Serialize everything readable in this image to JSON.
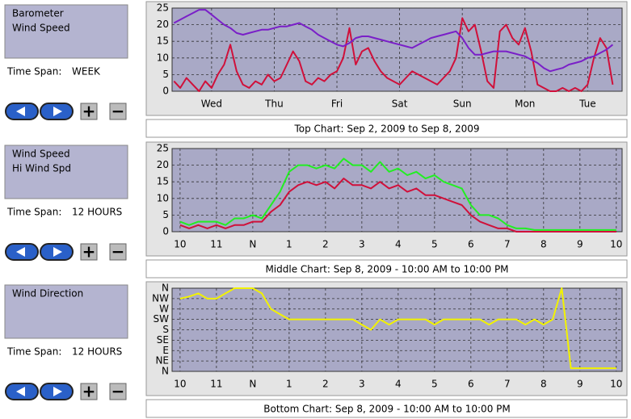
{
  "panels": [
    {
      "time_span_label": "Time Span:",
      "time_span": "WEEK",
      "buttons": [
        "+",
        "−"
      ],
      "caption": "Top Chart:  Sep 2, 2009  to  Sep 8, 2009",
      "chart_data": {
        "type": "line",
        "x": [
          -0.1,
          0,
          0.1,
          0.2,
          0.3,
          0.4,
          0.5,
          0.6,
          0.7,
          0.8,
          0.9,
          1,
          1.1,
          1.2,
          1.3,
          1.4,
          1.5,
          1.6,
          1.7,
          1.8,
          1.9,
          2,
          2.1,
          2.2,
          2.3,
          2.4,
          2.5,
          2.6,
          2.7,
          2.8,
          2.9,
          3,
          3.1,
          3.2,
          3.3,
          3.4,
          3.5,
          3.6,
          3.7,
          3.8,
          3.9,
          4,
          4.1,
          4.2,
          4.3,
          4.4,
          4.5,
          4.6,
          4.7,
          4.8,
          4.9,
          5,
          5.1,
          5.2,
          5.3,
          5.4,
          5.5,
          5.6,
          5.7,
          5.8,
          5.9,
          6,
          6.1,
          6.2,
          6.3,
          6.4,
          6.5,
          6.6,
          6.7,
          6.8,
          6.9
        ],
        "xlim": [
          -0.13,
          7.05
        ],
        "xticks": [
          {
            "value": 0.5,
            "label": "Wed"
          },
          {
            "value": 1.5,
            "label": "Thu"
          },
          {
            "value": 2.5,
            "label": "Fri"
          },
          {
            "value": 3.5,
            "label": "Sat"
          },
          {
            "value": 4.5,
            "label": "Sun"
          },
          {
            "value": 5.5,
            "label": "Mon"
          },
          {
            "value": 6.5,
            "label": "Tue"
          }
        ],
        "ylim": [
          0,
          25
        ],
        "yticks": [
          0,
          5,
          10,
          15,
          20,
          25
        ],
        "grid": true,
        "series": [
          {
            "name": "Barometer",
            "color": "#7a1fc8",
            "values": [
              20.5,
              21.5,
              22.5,
              23.5,
              24.5,
              24.5,
              23,
              21.5,
              20,
              19,
              17.5,
              17,
              17.5,
              18,
              18.5,
              18.5,
              19,
              19.5,
              19.5,
              20,
              20.5,
              19.5,
              18.5,
              17,
              16,
              15,
              14,
              13.5,
              14.5,
              16,
              16.5,
              16.5,
              16,
              15.5,
              15,
              14.5,
              14,
              13.5,
              13,
              14,
              15,
              16,
              16.5,
              17,
              17.5,
              18,
              16,
              13,
              11,
              11,
              11.5,
              12,
              12,
              12,
              11.5,
              11,
              10.5,
              9.5,
              8.5,
              7,
              6,
              6.5,
              7,
              8,
              8.5,
              9,
              10,
              10.5,
              11.5,
              12.5,
              14
            ]
          },
          {
            "name": "Wind Speed",
            "color": "#d0103a",
            "values": [
              3,
              1,
              4,
              2,
              0,
              3,
              1,
              5,
              8,
              14,
              6,
              2,
              1,
              3,
              2,
              5,
              3,
              4,
              8,
              12,
              9,
              3,
              2,
              4,
              3,
              5,
              6,
              10,
              19,
              8,
              12,
              13,
              9,
              6,
              4,
              3,
              2,
              4,
              6,
              5,
              4,
              3,
              2,
              4,
              6,
              10,
              22,
              18,
              20,
              12,
              3,
              1,
              18,
              20,
              16,
              14,
              19,
              12,
              2,
              1,
              0,
              0,
              1,
              0,
              1,
              0,
              2,
              10,
              16,
              13,
              2
            ]
          }
        ]
      }
    },
    {
      "time_span_label": "Time Span:",
      "time_span": "12 HOURS",
      "buttons": [
        "+",
        "−"
      ],
      "caption": "Middle Chart:  Sep 8, 2009 - 10:00 AM  to  10:00 PM",
      "chart_data": {
        "type": "line",
        "x": [
          10,
          10.25,
          10.5,
          10.75,
          11,
          11.25,
          11.5,
          11.75,
          12,
          12.25,
          12.5,
          12.75,
          13,
          13.25,
          13.5,
          13.75,
          14,
          14.25,
          14.5,
          14.75,
          15,
          15.25,
          15.5,
          15.75,
          16,
          16.25,
          16.5,
          16.75,
          17,
          17.25,
          17.5,
          17.75,
          18,
          18.25,
          18.5,
          18.75,
          19,
          19.25,
          19.5,
          19.75,
          20,
          20.25,
          20.5,
          20.75,
          21,
          21.25,
          21.5,
          21.75,
          22
        ],
        "xlim": [
          9.78,
          22.16
        ],
        "xticks": [
          10,
          11,
          {
            "value": 12,
            "label": "N"
          },
          {
            "value": 13,
            "label": "1"
          },
          {
            "value": 14,
            "label": "2"
          },
          {
            "value": 15,
            "label": "3"
          },
          {
            "value": 16,
            "label": "4"
          },
          {
            "value": 17,
            "label": "5"
          },
          {
            "value": 18,
            "label": "6"
          },
          {
            "value": 19,
            "label": "7"
          },
          {
            "value": 20,
            "label": "8"
          },
          {
            "value": 21,
            "label": "9"
          },
          {
            "value": 22,
            "label": "10"
          }
        ],
        "ylim": [
          0,
          25
        ],
        "yticks": [
          0,
          5,
          10,
          15,
          20,
          25
        ],
        "grid": true,
        "series": [
          {
            "name": "Wind Speed",
            "color": "#d0103a",
            "values": [
              2,
              1,
              2,
              1,
              2,
              1,
              2,
              2,
              3,
              3,
              6,
              8,
              12,
              14,
              15,
              14,
              15,
              13,
              16,
              14,
              14,
              13,
              15,
              13,
              14,
              12,
              13,
              11,
              11,
              10,
              9,
              8,
              5,
              3,
              2,
              1,
              1,
              0,
              0,
              0,
              0,
              0,
              0,
              0,
              0,
              0,
              0,
              0,
              0
            ]
          },
          {
            "name": "Hi Wind Spd",
            "color": "#22ee22",
            "values": [
              3,
              2,
              3,
              3,
              3,
              2,
              4,
              4,
              5,
              4,
              8,
              12,
              18,
              20,
              20,
              19,
              20,
              19,
              22,
              20,
              20,
              18,
              21,
              18,
              19,
              17,
              18,
              16,
              17,
              15,
              14,
              13,
              8,
              5,
              5,
              4,
              2,
              1,
              1,
              0.5,
              0.5,
              0.5,
              0.5,
              0.5,
              0.5,
              0.5,
              0.5,
              0.5,
              0.5
            ]
          }
        ]
      }
    },
    {
      "time_span_label": "Time Span:",
      "time_span": "12 HOURS",
      "buttons": [
        "+",
        "−"
      ],
      "caption": "Bottom Chart:  Sep 8, 2009 - 10:00 AM  to  10:00 PM",
      "chart_data": {
        "type": "line",
        "x": [
          10,
          10.25,
          10.5,
          10.75,
          11,
          11.25,
          11.5,
          11.75,
          12,
          12.25,
          12.5,
          12.75,
          13,
          13.25,
          13.5,
          13.75,
          14,
          14.25,
          14.5,
          14.75,
          15,
          15.25,
          15.5,
          15.75,
          16,
          16.25,
          16.5,
          16.75,
          17,
          17.25,
          17.5,
          17.75,
          18,
          18.25,
          18.5,
          18.75,
          19,
          19.25,
          19.5,
          19.75,
          20,
          20.25,
          20.5,
          20.75,
          21,
          21.25,
          21.5,
          21.75,
          22
        ],
        "xlim": [
          9.78,
          22.16
        ],
        "xticks": [
          10,
          11,
          {
            "value": 12,
            "label": "N"
          },
          {
            "value": 13,
            "label": "1"
          },
          {
            "value": 14,
            "label": "2"
          },
          {
            "value": 15,
            "label": "3"
          },
          {
            "value": 16,
            "label": "4"
          },
          {
            "value": 17,
            "label": "5"
          },
          {
            "value": 18,
            "label": "6"
          },
          {
            "value": 19,
            "label": "7"
          },
          {
            "value": 20,
            "label": "8"
          },
          {
            "value": 21,
            "label": "9"
          },
          {
            "value": 22,
            "label": "10"
          }
        ],
        "ylim": [
          0,
          8
        ],
        "yticks": [
          {
            "value": 0,
            "label": "N"
          },
          {
            "value": 1,
            "label": "NE"
          },
          {
            "value": 2,
            "label": "E"
          },
          {
            "value": 3,
            "label": "SE"
          },
          {
            "value": 4,
            "label": "S"
          },
          {
            "value": 5,
            "label": "SW"
          },
          {
            "value": 6,
            "label": "W"
          },
          {
            "value": 7,
            "label": "NW"
          },
          {
            "value": 8,
            "label": "N"
          }
        ],
        "grid": true,
        "series": [
          {
            "name": "Wind Direction",
            "color": "#f2f200",
            "values": [
              7,
              7.2,
              7.5,
              7,
              7,
              7.5,
              8,
              8,
              8,
              7.5,
              6,
              5.5,
              5,
              5,
              5,
              5,
              5,
              5,
              5,
              5,
              4.5,
              4,
              5,
              4.5,
              5,
              5,
              5,
              5,
              4.5,
              5,
              5,
              5,
              5,
              5,
              4.5,
              5,
              5,
              5,
              4.5,
              5,
              4.5,
              5,
              8,
              0.3,
              0.3,
              0.3,
              0.3,
              0.3,
              0.3
            ]
          }
        ]
      }
    }
  ]
}
